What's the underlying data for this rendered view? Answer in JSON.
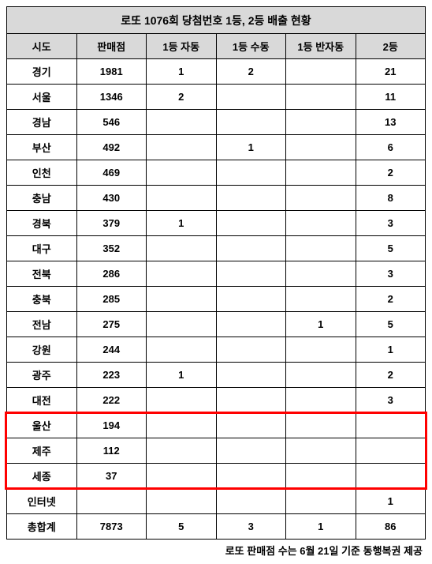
{
  "title": "로또 1076회 당첨번호 1등, 2등 배출 현황",
  "columns": [
    "시도",
    "판매점",
    "1등 자동",
    "1등 수동",
    "1등 반자동",
    "2등"
  ],
  "rows": [
    {
      "c0": "경기",
      "c1": "1981",
      "c2": "1",
      "c3": "2",
      "c4": "",
      "c5": "21"
    },
    {
      "c0": "서울",
      "c1": "1346",
      "c2": "2",
      "c3": "",
      "c4": "",
      "c5": "11"
    },
    {
      "c0": "경남",
      "c1": "546",
      "c2": "",
      "c3": "",
      "c4": "",
      "c5": "13"
    },
    {
      "c0": "부산",
      "c1": "492",
      "c2": "",
      "c3": "1",
      "c4": "",
      "c5": "6"
    },
    {
      "c0": "인천",
      "c1": "469",
      "c2": "",
      "c3": "",
      "c4": "",
      "c5": "2"
    },
    {
      "c0": "충남",
      "c1": "430",
      "c2": "",
      "c3": "",
      "c4": "",
      "c5": "8"
    },
    {
      "c0": "경북",
      "c1": "379",
      "c2": "1",
      "c3": "",
      "c4": "",
      "c5": "3"
    },
    {
      "c0": "대구",
      "c1": "352",
      "c2": "",
      "c3": "",
      "c4": "",
      "c5": "5"
    },
    {
      "c0": "전북",
      "c1": "286",
      "c2": "",
      "c3": "",
      "c4": "",
      "c5": "3"
    },
    {
      "c0": "충북",
      "c1": "285",
      "c2": "",
      "c3": "",
      "c4": "",
      "c5": "2"
    },
    {
      "c0": "전남",
      "c1": "275",
      "c2": "",
      "c3": "",
      "c4": "1",
      "c5": "5"
    },
    {
      "c0": "강원",
      "c1": "244",
      "c2": "",
      "c3": "",
      "c4": "",
      "c5": "1"
    },
    {
      "c0": "광주",
      "c1": "223",
      "c2": "1",
      "c3": "",
      "c4": "",
      "c5": "2"
    },
    {
      "c0": "대전",
      "c1": "222",
      "c2": "",
      "c3": "",
      "c4": "",
      "c5": "3"
    },
    {
      "c0": "울산",
      "c1": "194",
      "c2": "",
      "c3": "",
      "c4": "",
      "c5": ""
    },
    {
      "c0": "제주",
      "c1": "112",
      "c2": "",
      "c3": "",
      "c4": "",
      "c5": ""
    },
    {
      "c0": "세종",
      "c1": "37",
      "c2": "",
      "c3": "",
      "c4": "",
      "c5": ""
    },
    {
      "c0": "인터넷",
      "c1": "",
      "c2": "",
      "c3": "",
      "c4": "",
      "c5": "1"
    },
    {
      "c0": "총합계",
      "c1": "7873",
      "c2": "5",
      "c3": "3",
      "c4": "1",
      "c5": "86"
    }
  ],
  "footnote": "로또 판매점 수는 6월 21일 기준 동행복권 제공",
  "highlight": {
    "start_row_index": 14,
    "row_count": 3,
    "color": "#ff0000"
  }
}
